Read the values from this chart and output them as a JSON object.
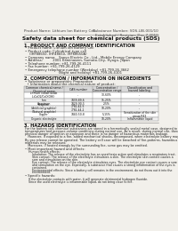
{
  "bg_color": "#f2f0eb",
  "header_top_left": "Product Name: Lithium Ion Battery Cell",
  "header_top_right": "Substance Number: SDS-LIB-001/10\nEstablished / Revision: Dec.7.2010",
  "main_title": "Safety data sheet for chemical products (SDS)",
  "section1_title": "1. PRODUCT AND COMPANY IDENTIFICATION",
  "section1_lines": [
    "• Product name: Lithium Ion Battery Cell",
    "• Product code: Cylindrical-type cell",
    "    (IHF88650, IHF48650, IHF68650A)",
    "• Company name:   Sanyo Electric Co., Ltd., Mobile Energy Company",
    "• Address:         2001 Kaminaizen, Sumoto-City, Hyogo, Japan",
    "• Telephone number: +81-799-26-4111",
    "• Fax number: +81-799-26-4129",
    "• Emergency telephone number (Weekday) +81-799-26-3662",
    "                              (Night and holiday) +81-799-26-4101"
  ],
  "section2_title": "2. COMPOSITION / INFORMATION ON INGREDIENTS",
  "section2_sub": "• Substance or preparation: Preparation",
  "section2_sub2": "  • Information about the chemical nature of product:",
  "table_col_headers": [
    "Common chemical name /\nChemical name",
    "CAS number",
    "Concentration /\nConcentration range",
    "Classification and\nhazard labeling"
  ],
  "table_rows": [
    [
      "Lithium cobalt oxide\n(LiCoO2/CoO(OH))",
      "-",
      "30-60%",
      "-"
    ],
    [
      "Iron",
      "7439-89-6",
      "15-25%",
      "-"
    ],
    [
      "Aluminum",
      "7429-90-5",
      "2-5%",
      "-"
    ],
    [
      "Graphite\n(Artificial graphite)\n(Natural graphite)",
      "7782-42-5\n7782-44-2",
      "10-20%",
      "-"
    ],
    [
      "Copper",
      "7440-50-8",
      "5-15%",
      "Sensitization of the skin\ngroup R43"
    ],
    [
      "Organic electrolyte",
      "-",
      "10-20%",
      "Inflammable liquid"
    ]
  ],
  "section3_title": "3. HAZARDS IDENTIFICATION",
  "section3_lines": [
    "For the battery cell, chemical substances are stored in a hermetically sealed metal case, designed to withstand",
    "temperatures and pressure-volume conditions during normal use. As a result, during normal use, there is no",
    "physical danger of ignition or explosion and there is no danger of hazardous materials leakage.",
    "   However, if exposed to a fire, added mechanical shocks, decomposed, when electrolyte battery may be used.",
    "By gas release cannot be operated. The battery cell case will be breached of fire-patterns, hazardous",
    "materials may be released.",
    "   Moreover, if heated strongly by the surrounding fire, some gas may be emitted."
  ],
  "section3_sub1": "• Most important hazard and effects:",
  "section3_sub1_lines": [
    "    Human health effects:",
    "        Inhalation: The release of the electrolyte has an anesthesia action and stimulates a respiratory tract.",
    "        Skin contact: The release of the electrolyte stimulates a skin. The electrolyte skin contact causes a",
    "        sore and stimulation on the skin.",
    "        Eye contact: The release of the electrolyte stimulates eyes. The electrolyte eye contact causes a sore",
    "        and stimulation on the eye. Especially, a substance that causes a strong inflammation of the eyes is",
    "        contained.",
    "        Environmental effects: Since a battery cell remains in the environment, do not throw out it into the",
    "        environment."
  ],
  "section3_sub2": "• Specific hazards:",
  "section3_sub2_lines": [
    "    If the electrolyte contacts with water, it will generate detrimental hydrogen fluoride.",
    "    Since the used electrolyte is inflammable liquid, do not bring close to fire."
  ]
}
